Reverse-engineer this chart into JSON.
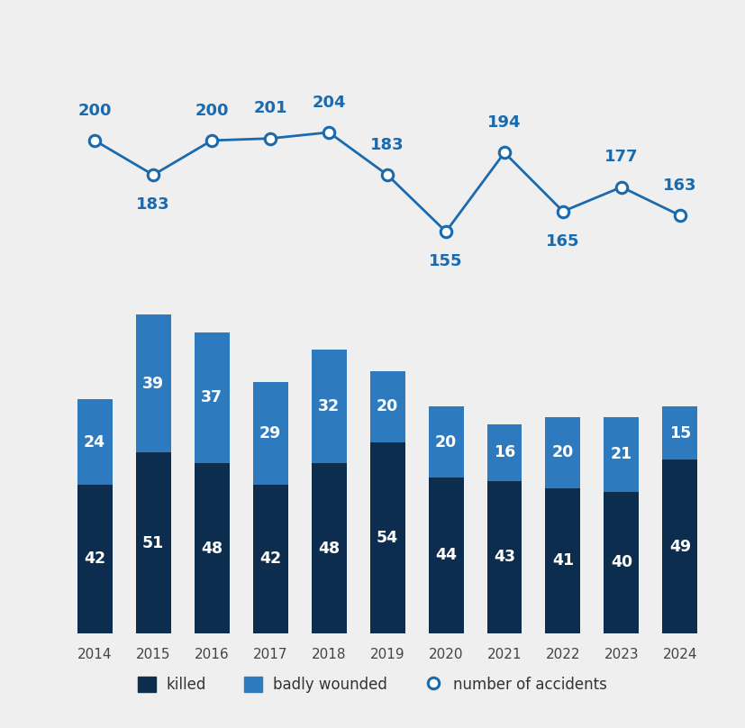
{
  "years": [
    "2014",
    "2015",
    "2016",
    "2017",
    "2018",
    "2019",
    "2020",
    "2021",
    "2022",
    "2023",
    "2024"
  ],
  "killed": [
    42,
    51,
    48,
    42,
    48,
    54,
    44,
    43,
    41,
    40,
    49
  ],
  "badly_wounded": [
    24,
    39,
    37,
    29,
    32,
    20,
    20,
    16,
    20,
    21,
    15
  ],
  "accidents": [
    200,
    183,
    200,
    201,
    204,
    183,
    155,
    194,
    165,
    177,
    163
  ],
  "color_killed": "#0d2d4e",
  "color_wounded": "#2e7abf",
  "color_accidents_line": "#1a6aad",
  "background_color": "#efefef",
  "bar_width": 0.6,
  "legend_killed": "killed",
  "legend_wounded": "badly wounded",
  "legend_accidents": "number of accidents",
  "label_offsets_acc": [
    1,
    -1,
    1,
    1,
    1,
    1,
    -1,
    1,
    -1,
    1,
    1
  ]
}
